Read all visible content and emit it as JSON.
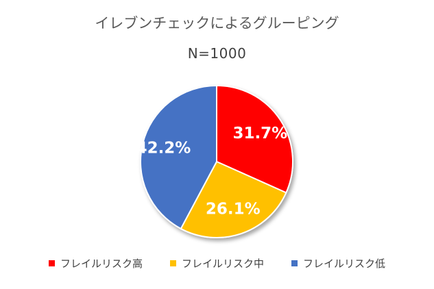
{
  "chart_data": {
    "type": "pie",
    "title": "イレブンチェックによるグルーピング",
    "subtitle": "N=1000",
    "slices": [
      {
        "label": "フレイルリスク高",
        "value": 31.7,
        "display": "31.7%",
        "color": "#ff0000"
      },
      {
        "label": "フレイルリスク中",
        "value": 26.1,
        "display": "26.1%",
        "color": "#ffc000"
      },
      {
        "label": "フレイルリスク低",
        "value": 42.2,
        "display": "42.2%",
        "color": "#4472c4"
      }
    ],
    "legend_position": "bottom"
  }
}
